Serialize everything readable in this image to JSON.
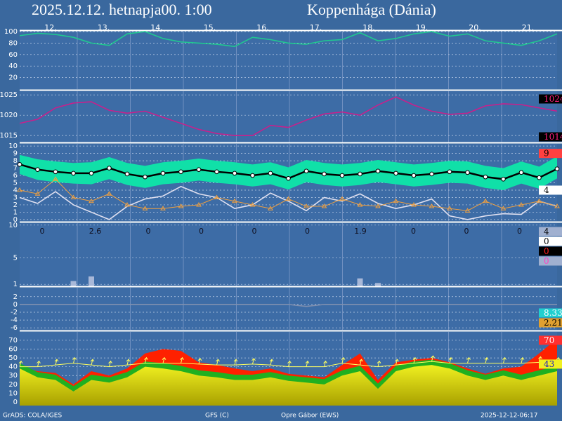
{
  "header": {
    "title": "2025.12.12. hetnapja00. 1:00",
    "location": "Koppenhága (Dánia)",
    "days": [
      "12.",
      "13.",
      "14.",
      "15.",
      "16.",
      "17.",
      "18.",
      "19.",
      "20.",
      "21."
    ]
  },
  "footer": {
    "left": "GrADS: COLA/IGES",
    "model": "GFS (C)",
    "author": "Opre Gábor (EWS)",
    "date": "2025-12-12-06:17"
  },
  "chart_data": [
    {
      "type": "line",
      "ylim": [
        0,
        100
      ],
      "yticks": [
        20,
        40,
        60,
        80,
        100
      ],
      "series": [
        {
          "style": "line",
          "color": "#20c890",
          "values": [
            93,
            97,
            95,
            90,
            80,
            76,
            96,
            100,
            88,
            82,
            80,
            78,
            74,
            90,
            86,
            80,
            78,
            84,
            86,
            98,
            84,
            88,
            96,
            100,
            92,
            96,
            84,
            80,
            76,
            84,
            96
          ]
        }
      ]
    },
    {
      "type": "line",
      "ylim": [
        1013.3,
        1025.9
      ],
      "yticks": [
        1015,
        1020,
        1025
      ],
      "series": [
        {
          "style": "line",
          "color": "#c8208c",
          "values": [
            1018,
            1019,
            1021.8,
            1023,
            1023.3,
            1021.2,
            1020.5,
            1021,
            1019.5,
            1018,
            1016.5,
            1015.5,
            1015,
            1015,
            1017.5,
            1017,
            1018.8,
            1020.3,
            1020.8,
            1020,
            1022.5,
            1024.5,
            1022.5,
            1021,
            1020.2,
            1020.5,
            1022.3,
            1022.8,
            1022.6,
            1021.8,
            1021
          ]
        }
      ],
      "end_labels": [
        1024,
        1014
      ],
      "end_label_colors": [
        "#000000",
        "#000000"
      ],
      "end_label_text_colors": [
        "#ff2080",
        "#ff2080"
      ]
    },
    {
      "type": "line",
      "ylim": [
        -0.2,
        10.3
      ],
      "yticks": [
        0,
        1,
        2,
        3,
        4,
        5,
        6,
        7,
        8,
        9,
        10
      ],
      "series": [
        {
          "style": "band",
          "color": "#10e0a8",
          "lower": [
            6.2,
            5.4,
            5.1,
            4.9,
            4.8,
            5.5,
            4.7,
            4.3,
            4.8,
            5,
            5.3,
            5,
            4.8,
            4.5,
            4.8,
            4.1,
            5.1,
            4.7,
            4.5,
            4.7,
            5.1,
            4.8,
            4.5,
            4.7,
            5,
            4.9,
            4.3,
            4,
            4.9,
            4.2,
            5.6
          ],
          "upper": [
            8.8,
            8.2,
            7.9,
            7.7,
            7.8,
            8.5,
            7.7,
            7.3,
            7.8,
            8,
            8.3,
            8,
            7.8,
            7.5,
            7.8,
            7.1,
            8.1,
            7.7,
            7.5,
            7.7,
            8.1,
            7.8,
            7.5,
            7.7,
            8,
            7.9,
            7.3,
            7,
            7.9,
            7.2,
            8.6
          ]
        },
        {
          "style": "line",
          "color": "#e0e0f0",
          "values": [
            3,
            2.2,
            3.8,
            2,
            1,
            0,
            1.8,
            2.8,
            3.2,
            4.5,
            3.5,
            3,
            1.5,
            2,
            3.6,
            2.5,
            1.2,
            3,
            2.5,
            3.5,
            2.2,
            1.5,
            2,
            2.8,
            0.5,
            0,
            0.5,
            0.8,
            0.7,
            2.5,
            1.8
          ]
        },
        {
          "style": "triangles",
          "color": "#f0a040",
          "values": [
            4,
            3.5,
            5.5,
            3,
            2.5,
            3.5,
            2,
            1.5,
            1.5,
            1.8,
            2,
            3,
            2.5,
            2,
            1.5,
            2.8,
            1.8,
            1.8,
            2.8,
            2,
            1.8,
            2.5,
            2,
            1.8,
            1.5,
            1.2,
            2.5,
            1.5,
            2,
            2.5,
            1.8
          ]
        },
        {
          "style": "dots",
          "color": "#000000",
          "values": [
            7.5,
            6.8,
            6.5,
            6.3,
            6.3,
            7,
            6.2,
            5.8,
            6.3,
            6.5,
            6.8,
            6.5,
            6.3,
            6,
            6.3,
            5.6,
            6.6,
            6.2,
            6,
            6.2,
            6.6,
            6.3,
            6,
            6.2,
            6.5,
            6.4,
            5.8,
            5.5,
            6.4,
            5.7,
            6.9
          ]
        }
      ],
      "end_labels": [
        9,
        4
      ],
      "end_label_colors": [
        "#ff4040",
        "#ffffff"
      ],
      "end_label_text_colors": [
        "#000000",
        "#000000"
      ]
    },
    {
      "type": "bar",
      "ylim": [
        0.7,
        10.3
      ],
      "yticks": [
        1,
        5,
        10
      ],
      "series": [
        {
          "style": "bar",
          "color": "#a8b8d8",
          "values": [
            0,
            0,
            0,
            1.5,
            2.2,
            0,
            0,
            0,
            0,
            0,
            0,
            0,
            0,
            0,
            0,
            0,
            0,
            0,
            0,
            1.9,
            1.2,
            0,
            0,
            0,
            0,
            0,
            0,
            0,
            0,
            0,
            0
          ]
        }
      ],
      "daily_totals": [
        0,
        2.6,
        0,
        0,
        0,
        0,
        1.9,
        0,
        0,
        0
      ],
      "end_labels": [
        4,
        0,
        0,
        0
      ],
      "end_label_colors": [
        "#a0b0d0",
        "#ffffff",
        "#000000",
        "#a0b0d0"
      ],
      "end_label_text_colors": [
        "#000000",
        "#000000",
        "#ff2020",
        "#ff40c0"
      ]
    },
    {
      "type": "line",
      "ylim": [
        -6.5,
        4.3
      ],
      "yticks": [
        2,
        0,
        -2,
        -4,
        -6
      ],
      "series": [
        {
          "style": "line",
          "color": "#8090b0",
          "values": [
            0,
            0,
            0,
            0,
            0,
            0,
            0,
            0,
            0,
            0,
            0,
            0,
            0,
            0,
            0,
            0,
            -0.5,
            0,
            0,
            0,
            0,
            0,
            0,
            0,
            0,
            0,
            0,
            0,
            0,
            0,
            0
          ]
        }
      ],
      "end_labels": [
        8.33,
        2.21
      ],
      "end_label_colors": [
        "#20d0d0",
        "#e0a030"
      ],
      "end_label_text_colors": [
        "#ffffff",
        "#000000"
      ]
    },
    {
      "type": "area",
      "ylim": [
        -4,
        79.5
      ],
      "yticks": [
        0,
        10,
        20,
        30,
        40,
        50,
        60,
        70
      ],
      "series": [
        {
          "style": "area",
          "color": "#ff2000",
          "values": [
            40,
            35,
            33,
            20,
            35,
            30,
            38,
            55,
            60,
            58,
            45,
            42,
            38,
            35,
            38,
            32,
            30,
            28,
            42,
            55,
            25,
            45,
            48,
            50,
            45,
            38,
            32,
            38,
            40,
            55,
            72
          ]
        },
        {
          "style": "area",
          "color": "#20b020",
          "values": [
            44,
            34,
            31,
            18,
            31,
            28,
            34,
            46,
            44,
            41,
            36,
            34,
            31,
            31,
            34,
            30,
            28,
            26,
            36,
            41,
            21,
            41,
            46,
            48,
            44,
            36,
            31,
            36,
            31,
            36,
            41
          ]
        },
        {
          "style": "area",
          "color": "#f0f020",
          "values": [
            38,
            28,
            25,
            12,
            25,
            22,
            28,
            40,
            38,
            35,
            30,
            28,
            25,
            25,
            28,
            24,
            22,
            20,
            30,
            35,
            15,
            35,
            40,
            42,
            38,
            30,
            25,
            30,
            25,
            30,
            35
          ]
        },
        {
          "style": "arrows",
          "color": "#ffff60",
          "values": [
            40,
            40,
            42,
            44,
            42,
            40,
            42,
            44,
            44,
            44,
            43,
            42,
            42,
            43,
            42,
            40,
            40,
            40,
            44,
            42,
            40,
            42,
            44,
            46,
            44,
            44,
            44,
            44,
            44,
            45,
            44
          ]
        }
      ],
      "end_labels": [
        70,
        43
      ],
      "end_label_colors": [
        "#ff3030",
        "#f0f020"
      ],
      "end_label_text_colors": [
        "#ffffff",
        "#2020c0"
      ]
    }
  ]
}
